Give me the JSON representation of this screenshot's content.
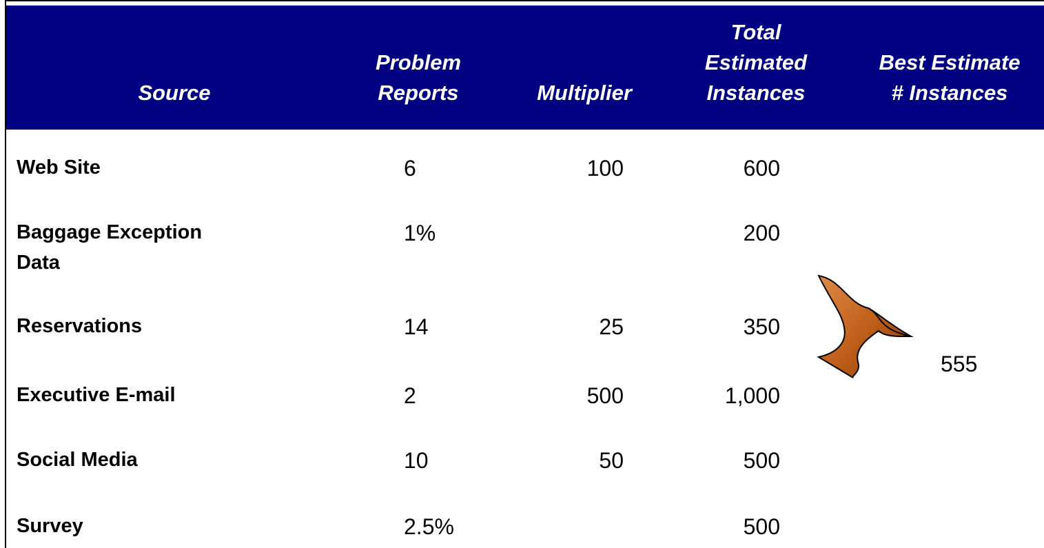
{
  "table": {
    "header": [
      [
        "Source"
      ],
      [
        "Problem",
        "Reports"
      ],
      [
        "Multiplier"
      ],
      [
        "Total",
        "Estimated",
        "Instances"
      ],
      [
        "Best Estimate",
        "# Instances"
      ]
    ],
    "rows": [
      {
        "source": [
          "Web Site"
        ],
        "problem_reports": "6",
        "multiplier": "100",
        "total": "600"
      },
      {
        "source": [
          "Baggage Exception",
          "Data"
        ],
        "problem_reports": "1%",
        "total": "200"
      },
      {
        "source": [
          "Reservations"
        ],
        "problem_reports": "14",
        "multiplier": "25",
        "total": "350"
      },
      {
        "source": [
          "Executive E-mail"
        ],
        "problem_reports": "2",
        "multiplier": "500",
        "total": "1,000"
      },
      {
        "source": [
          "Social Media"
        ],
        "problem_reports": "10",
        "multiplier": "50",
        "total": "500"
      },
      {
        "source": [
          "Survey"
        ],
        "problem_reports": "2.5%",
        "total": "500"
      }
    ],
    "best_estimate": "555"
  }
}
